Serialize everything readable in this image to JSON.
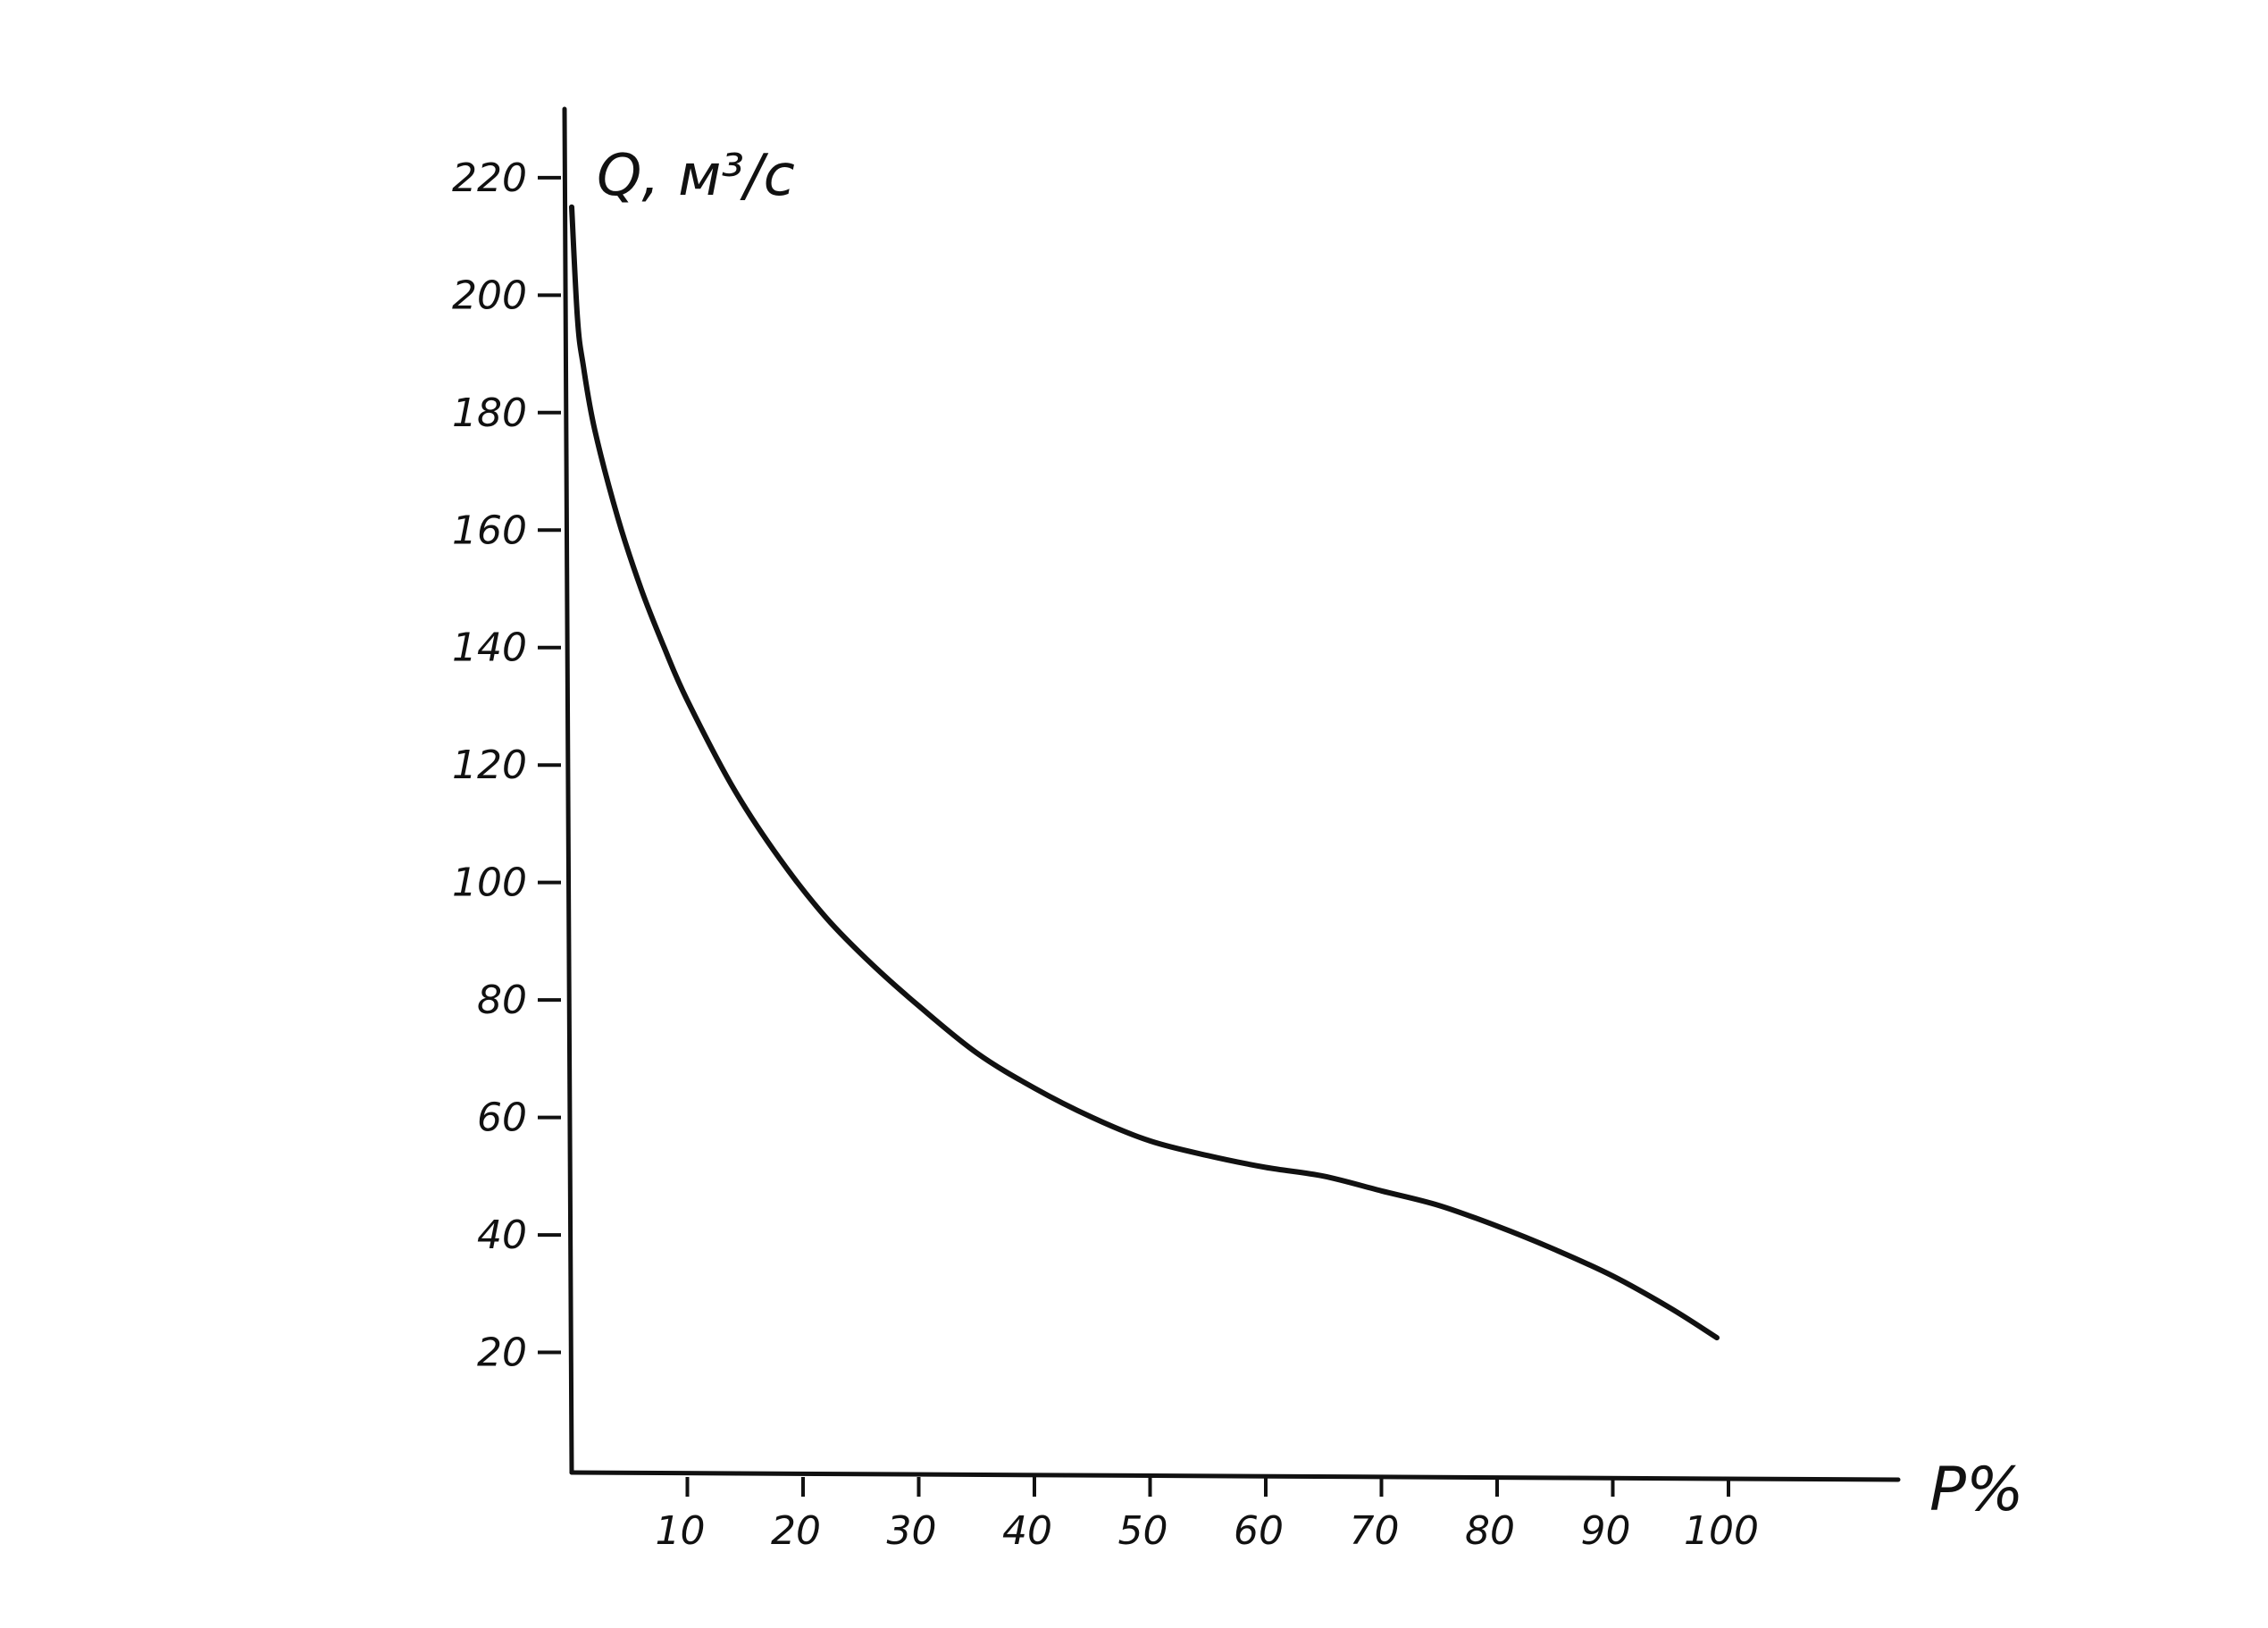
{
  "chart_data": {
    "type": "line",
    "xlabel": "P%",
    "ylabel": "Q, м³/с",
    "x_ticks": [
      10,
      20,
      30,
      40,
      50,
      60,
      70,
      80,
      90,
      100
    ],
    "y_ticks": [
      20,
      40,
      60,
      80,
      100,
      120,
      140,
      160,
      180,
      200,
      220
    ],
    "xlim": [
      0,
      115
    ],
    "ylim": [
      0,
      232
    ],
    "grid": false,
    "series": [
      {
        "x": [
          0,
          0.5,
          1,
          2,
          4,
          6,
          8,
          10,
          14,
          18,
          22,
          26,
          30,
          35,
          40,
          45,
          50,
          55,
          60,
          65,
          70,
          75,
          80,
          85,
          90,
          95,
          99
        ],
        "y": [
          215,
          196,
          188,
          177,
          162,
          150,
          140,
          131,
          116,
          104,
          94,
          86,
          79,
          71,
          65,
          60,
          56,
          53.5,
          51.5,
          50,
          47.5,
          45,
          41.5,
          37.5,
          33,
          27.5,
          22.5
        ]
      }
    ],
    "colors": {
      "ink": "#111111",
      "background": "#ffffff"
    }
  }
}
